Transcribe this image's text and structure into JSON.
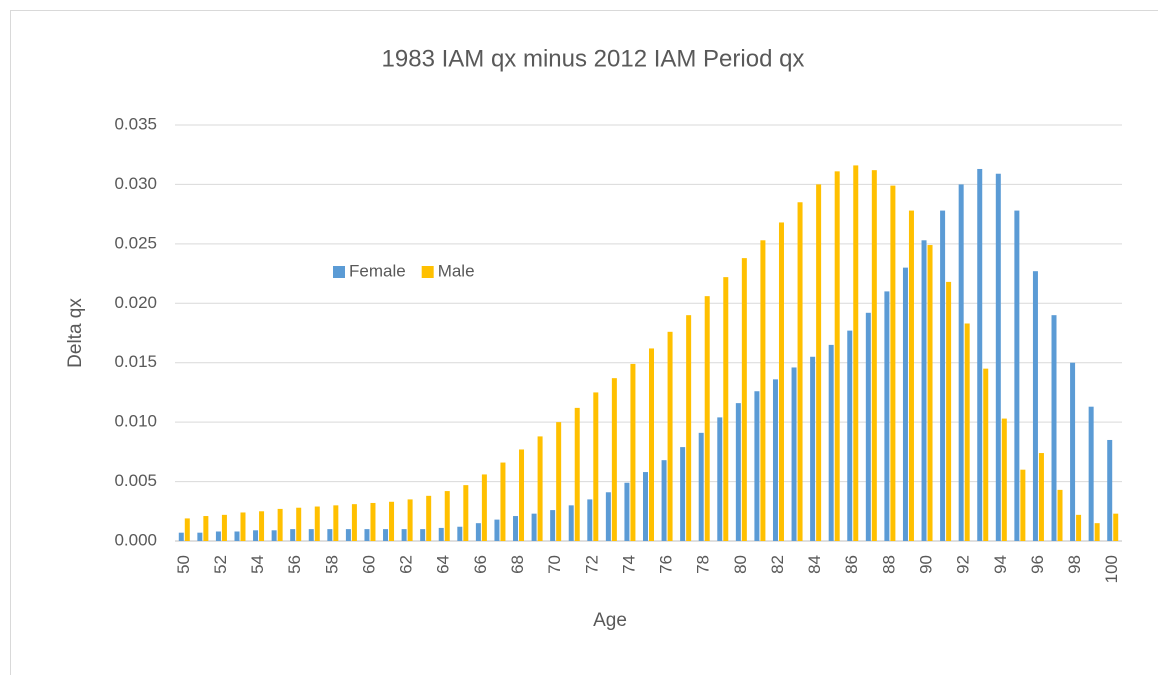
{
  "chart_data": {
    "type": "bar",
    "title": "1983 IAM qx minus 2012 IAM Period qx",
    "x_label": "Age",
    "y_label": "Delta qx",
    "categories": [
      50,
      null,
      52,
      null,
      54,
      null,
      56,
      null,
      58,
      null,
      60,
      null,
      62,
      null,
      64,
      null,
      66,
      null,
      68,
      null,
      70,
      null,
      72,
      null,
      74,
      null,
      76,
      null,
      78,
      null,
      80,
      null,
      82,
      null,
      84,
      null,
      86,
      null,
      88,
      null,
      90,
      null,
      92,
      null,
      94,
      null,
      96,
      null,
      98,
      null,
      100
    ],
    "series": [
      {
        "name": "Female",
        "color": "#5b9bd5",
        "values": [
          0.0007,
          0.0007,
          0.0008,
          0.0008,
          0.0009,
          0.0009,
          0.001,
          0.001,
          0.001,
          0.001,
          0.001,
          0.001,
          0.001,
          0.001,
          0.0011,
          0.0012,
          0.0015,
          0.0018,
          0.0021,
          0.0023,
          0.0026,
          0.003,
          0.0035,
          0.0041,
          0.0049,
          0.0058,
          0.0068,
          0.0079,
          0.0091,
          0.0104,
          0.0116,
          0.0126,
          0.0136,
          0.0146,
          0.0155,
          0.0165,
          0.0177,
          0.0192,
          0.021,
          0.023,
          0.0253,
          0.0278,
          0.03,
          0.0313,
          0.0309,
          0.0278,
          0.0227,
          0.019,
          0.015,
          0.0113,
          0.0085
        ]
      },
      {
        "name": "Male",
        "color": "#ffc000",
        "values": [
          0.0019,
          0.0021,
          0.0022,
          0.0024,
          0.0025,
          0.0027,
          0.0028,
          0.0029,
          0.003,
          0.0031,
          0.0032,
          0.0033,
          0.0035,
          0.0038,
          0.0042,
          0.0047,
          0.0056,
          0.0066,
          0.0077,
          0.0088,
          0.01,
          0.0112,
          0.0125,
          0.0137,
          0.0149,
          0.0162,
          0.0176,
          0.019,
          0.0206,
          0.0222,
          0.0238,
          0.0253,
          0.0268,
          0.0285,
          0.03,
          0.0311,
          0.0316,
          0.0312,
          0.0299,
          0.0278,
          0.0249,
          0.0218,
          0.0183,
          0.0145,
          0.0103,
          0.006,
          0.0074,
          0.0043,
          0.0022,
          0.0015,
          0.0023
        ]
      }
    ],
    "ylim": [
      0,
      0.035
    ],
    "yticks": [
      {
        "value": 0,
        "label": "0.000"
      },
      {
        "value": 0.005,
        "label": "0.005"
      },
      {
        "value": 0.01,
        "label": "0.010"
      },
      {
        "value": 0.015,
        "label": "0.015"
      },
      {
        "value": 0.02,
        "label": "0.020"
      },
      {
        "value": 0.025,
        "label": "0.025"
      },
      {
        "value": 0.03,
        "label": "0.030"
      },
      {
        "value": 0.035,
        "label": "0.035"
      }
    ],
    "grid": true,
    "legend": "left"
  }
}
